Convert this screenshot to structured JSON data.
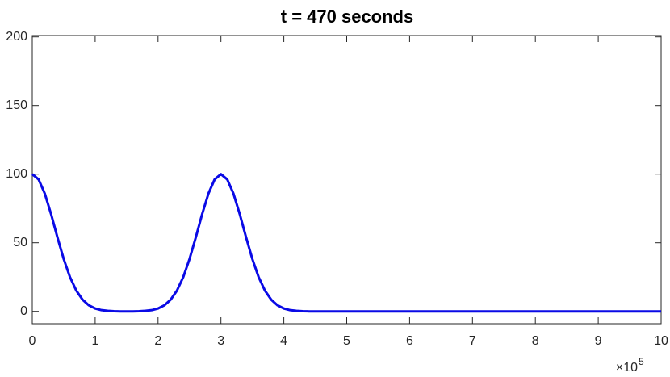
{
  "chart_data": {
    "type": "line",
    "title": "t =  470 seconds",
    "x": [
      0,
      0.1,
      0.2,
      0.3,
      0.4,
      0.5,
      0.6,
      0.7,
      0.8,
      0.9,
      1,
      1.1,
      1.2,
      1.3,
      1.4,
      1.5,
      1.6,
      1.7,
      1.8,
      1.9,
      2,
      2.1,
      2.2,
      2.3,
      2.4,
      2.5,
      2.6,
      2.7,
      2.8,
      2.9,
      3,
      3.1,
      3.2,
      3.3,
      3.4,
      3.5,
      3.6,
      3.7,
      3.8,
      3.9,
      4,
      4.1,
      4.2,
      4.3,
      4.4,
      4.5,
      5,
      6,
      7,
      8,
      9,
      10
    ],
    "series": [
      {
        "color": "#0a0ae6",
        "values": [
          100,
          96.2,
          85.7,
          70.7,
          53.9,
          38.1,
          24.9,
          15.1,
          8.5,
          4.4,
          2.1,
          0.9,
          0.4,
          0.1,
          0,
          0,
          0,
          0.1,
          0.4,
          0.9,
          2.1,
          4.4,
          8.5,
          15.1,
          24.9,
          38.1,
          53.9,
          70.7,
          85.7,
          96.2,
          100,
          96.2,
          85.7,
          70.7,
          53.9,
          38.1,
          24.9,
          15.1,
          8.5,
          4.4,
          2.1,
          0.9,
          0.4,
          0.1,
          0,
          0,
          0,
          0,
          0,
          0,
          0,
          0
        ]
      }
    ],
    "xlim": [
      0,
      10
    ],
    "xticks": [
      0,
      1,
      2,
      3,
      4,
      5,
      6,
      7,
      8,
      9,
      10
    ],
    "ylim": [
      -9,
      201
    ],
    "yticks": [
      0,
      50,
      100,
      150,
      200
    ],
    "x_scale_base": "×10",
    "x_scale_exponent": "5",
    "grid": false
  }
}
